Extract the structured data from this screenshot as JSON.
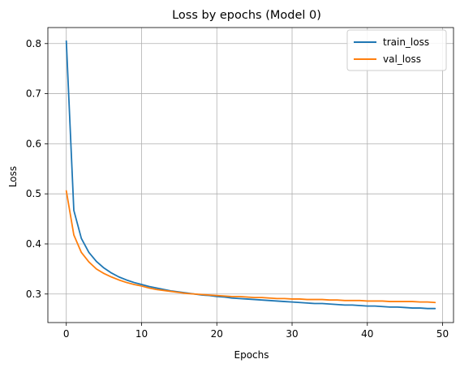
{
  "chart_data": {
    "type": "line",
    "title": "Loss by epochs (Model 0)",
    "xlabel": "Epochs",
    "ylabel": "Loss",
    "xlim": [
      -2.45,
      51.45
    ],
    "ylim": [
      0.243,
      0.832
    ],
    "xticks": [
      0,
      10,
      20,
      30,
      40,
      50
    ],
    "yticks": [
      0.3,
      0.4,
      0.5,
      0.6,
      0.7,
      0.8
    ],
    "grid": true,
    "legend_position": "top-right",
    "x": [
      0,
      1,
      2,
      3,
      4,
      5,
      6,
      7,
      8,
      9,
      10,
      11,
      12,
      13,
      14,
      15,
      16,
      17,
      18,
      19,
      20,
      21,
      22,
      23,
      24,
      25,
      26,
      27,
      28,
      29,
      30,
      31,
      32,
      33,
      34,
      35,
      36,
      37,
      38,
      39,
      40,
      41,
      42,
      43,
      44,
      45,
      46,
      47,
      48,
      49
    ],
    "series": [
      {
        "name": "train_loss",
        "color": "#1f77b4",
        "values": [
          0.805,
          0.467,
          0.411,
          0.383,
          0.365,
          0.352,
          0.342,
          0.334,
          0.328,
          0.323,
          0.319,
          0.315,
          0.312,
          0.309,
          0.306,
          0.304,
          0.302,
          0.3,
          0.298,
          0.297,
          0.295,
          0.294,
          0.292,
          0.291,
          0.29,
          0.289,
          0.288,
          0.287,
          0.286,
          0.285,
          0.284,
          0.283,
          0.282,
          0.281,
          0.281,
          0.28,
          0.279,
          0.278,
          0.278,
          0.277,
          0.276,
          0.276,
          0.275,
          0.274,
          0.274,
          0.273,
          0.272,
          0.272,
          0.271,
          0.271
        ]
      },
      {
        "name": "val_loss",
        "color": "#ff7f0e",
        "values": [
          0.506,
          0.418,
          0.383,
          0.364,
          0.35,
          0.341,
          0.334,
          0.328,
          0.323,
          0.319,
          0.316,
          0.312,
          0.309,
          0.307,
          0.305,
          0.303,
          0.301,
          0.3,
          0.299,
          0.298,
          0.297,
          0.296,
          0.295,
          0.295,
          0.294,
          0.293,
          0.293,
          0.292,
          0.291,
          0.291,
          0.29,
          0.29,
          0.289,
          0.289,
          0.289,
          0.288,
          0.288,
          0.287,
          0.287,
          0.287,
          0.286,
          0.286,
          0.286,
          0.285,
          0.285,
          0.285,
          0.285,
          0.284,
          0.284,
          0.283
        ]
      }
    ]
  }
}
